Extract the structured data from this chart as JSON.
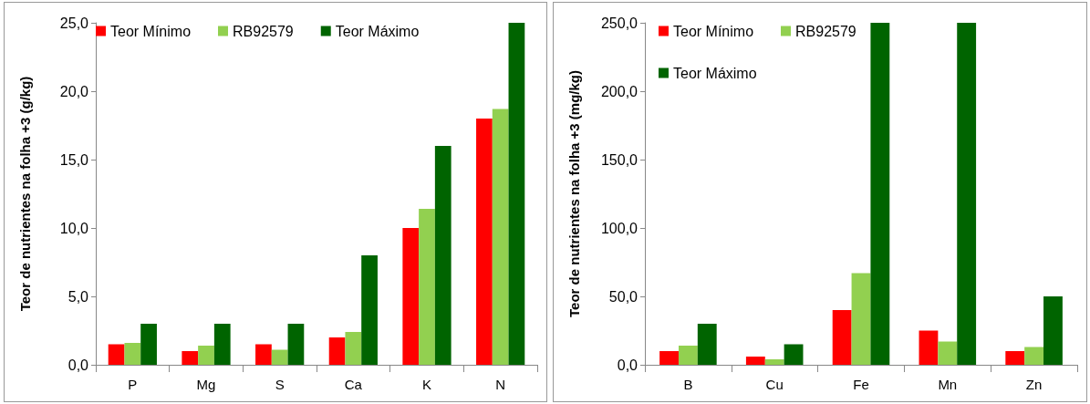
{
  "chart_data": [
    {
      "type": "bar",
      "ylabel": "Teor de nutrientes na folha +3 (g/kg)",
      "categories": [
        "P",
        "Mg",
        "S",
        "Ca",
        "K",
        "N"
      ],
      "series": [
        {
          "name": "Teor Mínimo",
          "color": "#ff0000",
          "values": [
            1.5,
            1,
            1.5,
            2,
            10,
            18
          ]
        },
        {
          "name": "RB92579",
          "color": "#92d050",
          "values": [
            1.6,
            1.4,
            1.1,
            2.4,
            11.4,
            18.7
          ]
        },
        {
          "name": "Teor Máximo",
          "color": "#006400",
          "values": [
            3,
            3,
            3,
            8,
            16,
            25
          ]
        }
      ],
      "ylim": [
        0,
        25
      ],
      "yticks": [
        {
          "value": 0,
          "label": "0,0"
        },
        {
          "value": 5,
          "label": "5,0"
        },
        {
          "value": 10,
          "label": "10,0"
        },
        {
          "value": 15,
          "label": "15,0"
        },
        {
          "value": 20,
          "label": "20,0"
        },
        {
          "value": 25,
          "label": "25,0"
        }
      ],
      "grid": false,
      "legend": "top"
    },
    {
      "type": "bar",
      "ylabel": "Teor de nutrientes na folha +3 (mg/kg)",
      "categories": [
        "B",
        "Cu",
        "Fe",
        "Mn",
        "Zn"
      ],
      "series": [
        {
          "name": "Teor Mínimo",
          "color": "#ff0000",
          "values": [
            10,
            6,
            40,
            25,
            10
          ]
        },
        {
          "name": "RB92579",
          "color": "#92d050",
          "values": [
            14,
            4,
            67,
            17,
            13
          ]
        },
        {
          "name": "Teor Máximo",
          "color": "#006400",
          "values": [
            30,
            15,
            250,
            250,
            50
          ]
        }
      ],
      "ylim": [
        0,
        250
      ],
      "yticks": [
        {
          "value": 0,
          "label": "0,0"
        },
        {
          "value": 50,
          "label": "50,0"
        },
        {
          "value": 100,
          "label": "100,0"
        },
        {
          "value": 150,
          "label": "150,0"
        },
        {
          "value": 200,
          "label": "200,0"
        },
        {
          "value": 250,
          "label": "250,0"
        }
      ],
      "grid": false,
      "legend": "top left"
    }
  ]
}
